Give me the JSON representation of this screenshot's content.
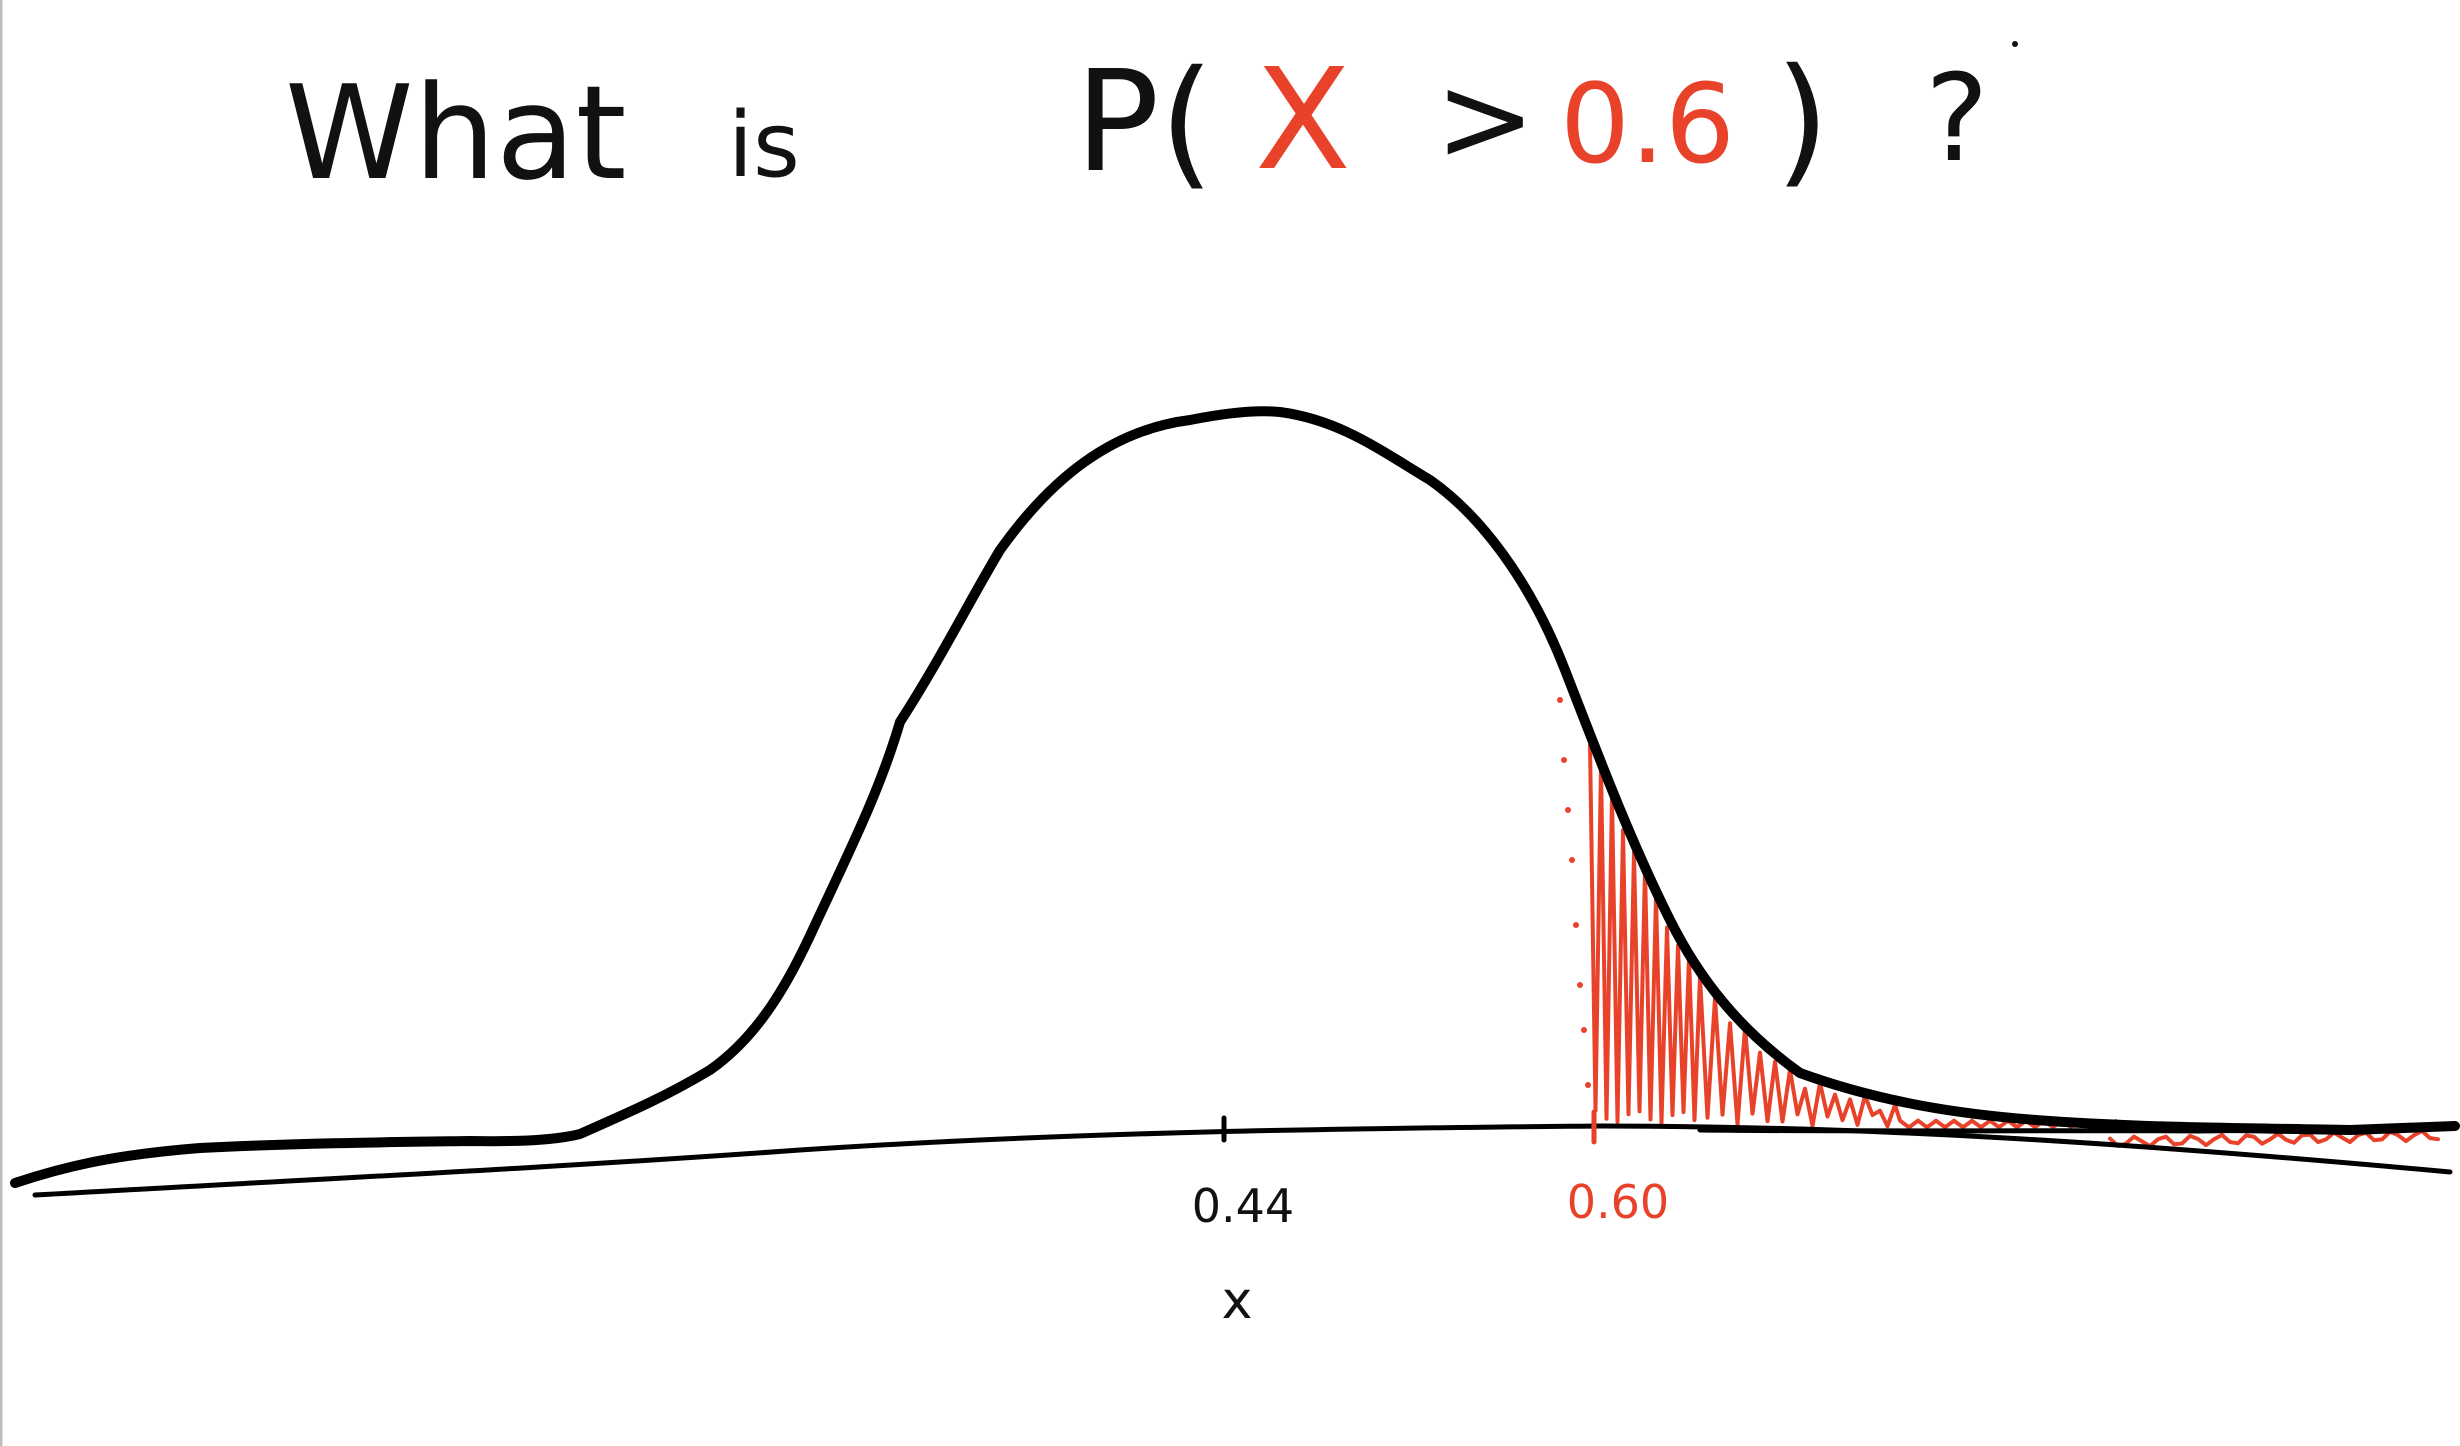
{
  "title": {
    "word_what": "What",
    "word_is": "is",
    "p_open": "P(",
    "variable": "X",
    "operator": ">",
    "threshold": "0.6",
    "p_close": ")",
    "question_mark": "?"
  },
  "axis": {
    "mean_label": "0.44",
    "threshold_label": "0.60",
    "variable_label": "x"
  },
  "colors": {
    "ink": "#000000",
    "accent": "#e8432a"
  }
}
